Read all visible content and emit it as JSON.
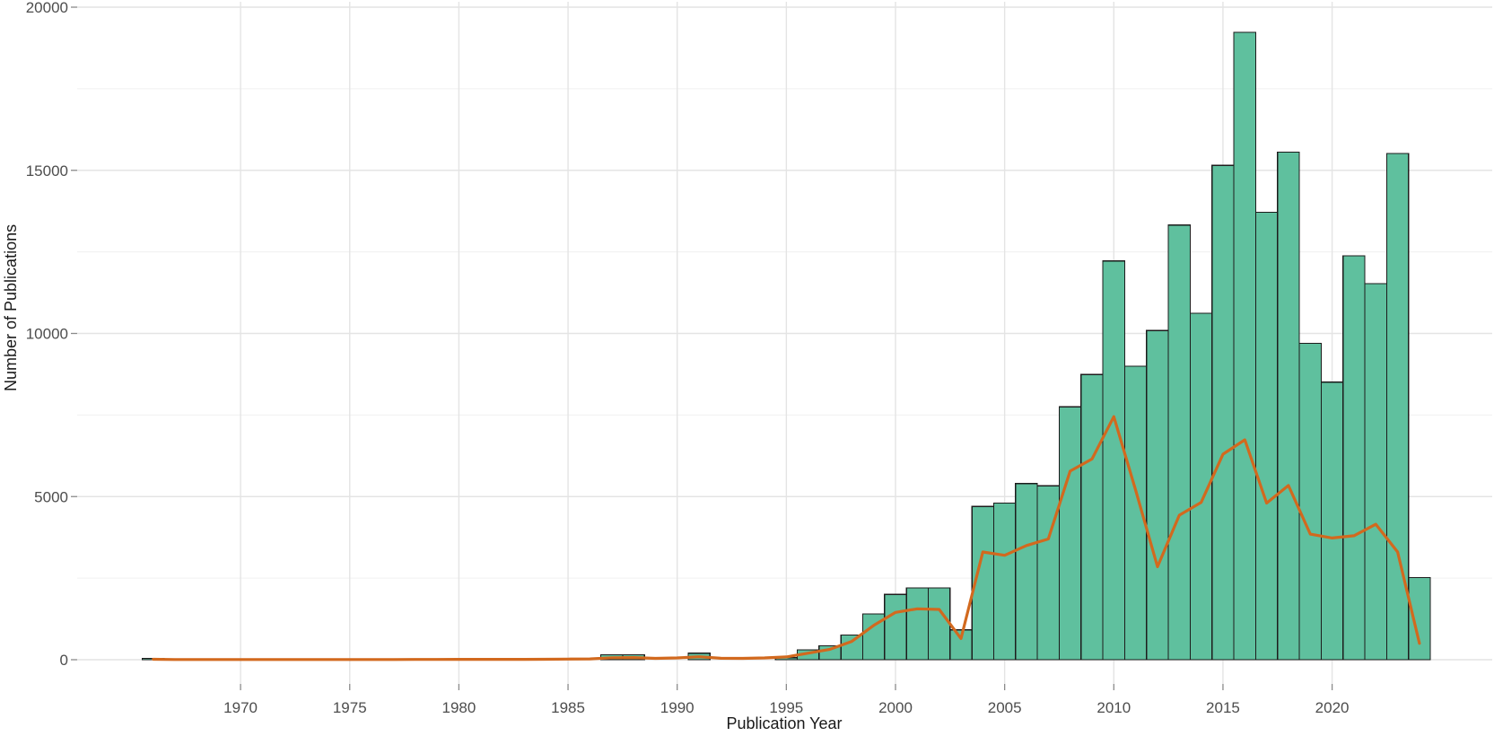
{
  "figure": {
    "x_axis_title": "Publication Year",
    "y_axis_title": "Number of Publications"
  },
  "chart_data": {
    "type": "bar",
    "overlay": "line",
    "title": "",
    "xlabel": "Publication Year",
    "ylabel": "Number of Publications",
    "xlim": [
      1964.9,
      2027.4
    ],
    "ylim": [
      0,
      20000
    ],
    "x_ticks": [
      1970,
      1975,
      1980,
      1985,
      1990,
      1995,
      2000,
      2005,
      2010,
      2015,
      2020
    ],
    "y_ticks": [
      0,
      5000,
      10000,
      15000,
      20000
    ],
    "y_minor_gridlines": [
      2500,
      7500,
      12500,
      17500
    ],
    "grid": "on",
    "legend": "none",
    "years": [
      1966,
      1967,
      1968,
      1969,
      1970,
      1971,
      1972,
      1973,
      1974,
      1975,
      1976,
      1977,
      1978,
      1979,
      1980,
      1981,
      1982,
      1983,
      1984,
      1985,
      1986,
      1987,
      1988,
      1989,
      1990,
      1991,
      1992,
      1993,
      1994,
      1995,
      1996,
      1997,
      1998,
      1999,
      2000,
      2001,
      2002,
      2003,
      2004,
      2005,
      2006,
      2007,
      2008,
      2009,
      2010,
      2011,
      2012,
      2013,
      2014,
      2015,
      2016,
      2017,
      2018,
      2019,
      2020,
      2021,
      2022,
      2023,
      2024
    ],
    "bar_values": [
      40,
      0,
      0,
      0,
      0,
      0,
      0,
      0,
      0,
      0,
      0,
      0,
      0,
      0,
      0,
      0,
      0,
      0,
      0,
      0,
      0,
      150,
      150,
      0,
      0,
      200,
      0,
      0,
      0,
      60,
      300,
      430,
      760,
      1400,
      2000,
      2200,
      2200,
      915,
      4700,
      4800,
      5400,
      5330,
      7750,
      8740,
      12220,
      9000,
      10090,
      13320,
      10620,
      15150,
      19230,
      13710,
      15560,
      9700,
      8510,
      12380,
      11530,
      15520,
      2520
    ],
    "line_values": [
      15,
      5,
      5,
      5,
      5,
      5,
      5,
      5,
      5,
      5,
      5,
      5,
      8,
      8,
      10,
      10,
      10,
      12,
      15,
      20,
      25,
      60,
      65,
      40,
      55,
      90,
      45,
      40,
      55,
      85,
      200,
      320,
      560,
      1050,
      1450,
      1560,
      1540,
      650,
      3300,
      3200,
      3500,
      3700,
      5780,
      6150,
      7450,
      5200,
      2850,
      4430,
      4820,
      6300,
      6740,
      4800,
      5340,
      3850,
      3730,
      3800,
      4150,
      3300,
      500
    ],
    "colors": {
      "bar_fill": "#5fc09e",
      "bar_stroke": "#1c1c1c",
      "line_color": "#d2691e",
      "grid_major": "#e4e4e4",
      "grid_minor": "#f0f0f0",
      "tick_mark": "#8a8a8a",
      "tick_label": "#4d4d4d",
      "axis_title": "#1a1a1a",
      "background": "#ffffff"
    }
  }
}
